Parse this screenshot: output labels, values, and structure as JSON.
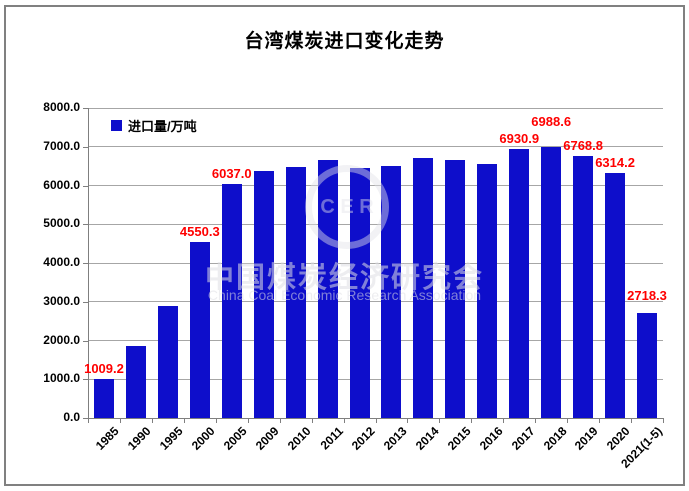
{
  "watermark": {
    "line1": "中国煤炭经济研究会",
    "line2": "China Coal Economic Research Association",
    "emblem": "C E R"
  },
  "colors": {
    "bar": "#0e0ecb",
    "data_label": "#ff0000",
    "grid": "#a6a6a6",
    "axis": "#7f7f7f",
    "frame_border": "#808080"
  },
  "chart_data": {
    "type": "bar",
    "title": "台湾煤炭进口变化走势",
    "ylabel": "进口量/万吨",
    "xlabel": "",
    "ylim": [
      0,
      8000
    ],
    "ytick_step": 1000,
    "ytick_decimals": 1,
    "grid": true,
    "legend_position": "top-left-inside",
    "legend_label": "进口量/万吨",
    "categories": [
      "1985",
      "1990",
      "1995",
      "2000",
      "2005",
      "2009",
      "2010",
      "2011",
      "2012",
      "2013",
      "2014",
      "2015",
      "2016",
      "2017",
      "2018",
      "2019",
      "2020",
      "2021(1-5)"
    ],
    "values": [
      1009.2,
      1860,
      2900,
      4550.3,
      6037.0,
      6380,
      6470,
      6660,
      6440,
      6500,
      6710,
      6660,
      6560,
      6930.9,
      6988.6,
      6768.8,
      6314.2,
      2718.3
    ],
    "data_labels": [
      {
        "category": "1985",
        "text": "1009.2"
      },
      {
        "category": "2000",
        "text": "4550.3"
      },
      {
        "category": "2005",
        "text": "6037.0"
      },
      {
        "category": "2017",
        "text": "6930.9"
      },
      {
        "category": "2018",
        "text": "6988.6",
        "dy": -15
      },
      {
        "category": "2019",
        "text": "6768.8"
      },
      {
        "category": "2020",
        "text": "6314.2"
      },
      {
        "category": "2021(1-5)",
        "text": "2718.3",
        "dy": -7
      }
    ]
  }
}
